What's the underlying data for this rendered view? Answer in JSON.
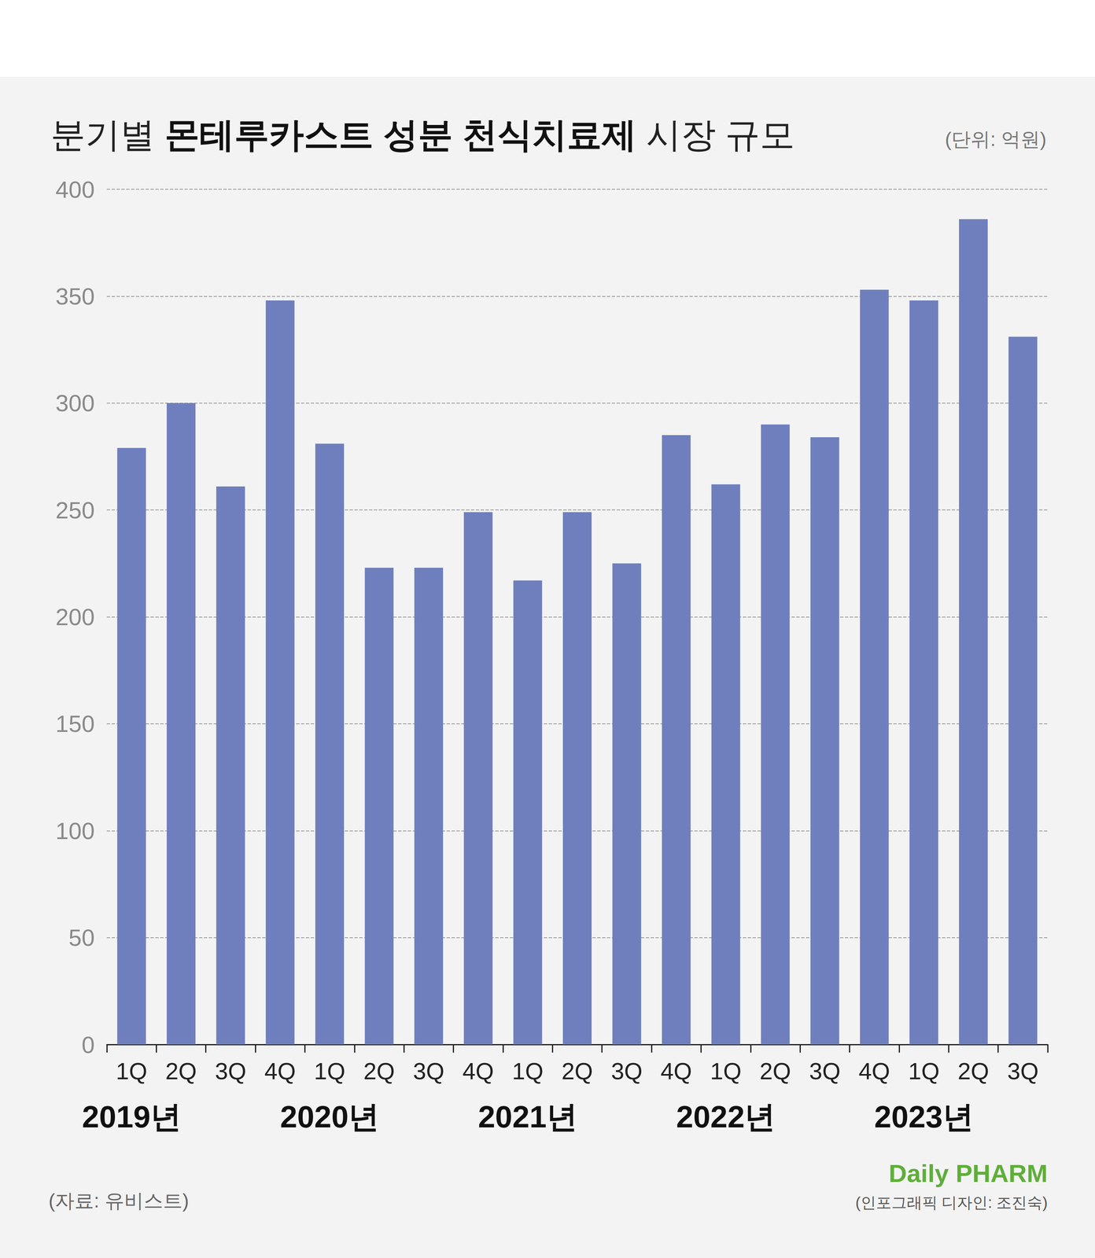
{
  "chart_data": {
    "type": "bar",
    "title": "분기별 몬테루카스트 성분 천식치료제 시장 규모",
    "title_bold": "몬테루카스트 성분 천식치료제",
    "unit": "(단위: 억원)",
    "categories": [
      "1Q",
      "2Q",
      "3Q",
      "4Q",
      "1Q",
      "2Q",
      "3Q",
      "4Q",
      "1Q",
      "2Q",
      "3Q",
      "4Q",
      "1Q",
      "2Q",
      "3Q",
      "4Q",
      "1Q",
      "2Q",
      "3Q"
    ],
    "year_labels": [
      "2019년",
      null,
      null,
      null,
      "2020년",
      null,
      null,
      null,
      "2021년",
      null,
      null,
      null,
      "2022년",
      null,
      null,
      null,
      "2023년",
      null,
      null
    ],
    "values": [
      279,
      300,
      261,
      348,
      281,
      223,
      223,
      249,
      217,
      249,
      225,
      285,
      262,
      290,
      284,
      353,
      348,
      386,
      331
    ],
    "color": "#6f7fbd",
    "ylim": [
      0,
      400
    ],
    "yticks": [
      0,
      50,
      100,
      150,
      200,
      250,
      300,
      350,
      400
    ],
    "grid": true,
    "data_labels": false,
    "source": "(자료: 유비스트)",
    "logo": "Daily PHARM",
    "credit": "(인포그래픽 디자인: 조진숙)"
  }
}
